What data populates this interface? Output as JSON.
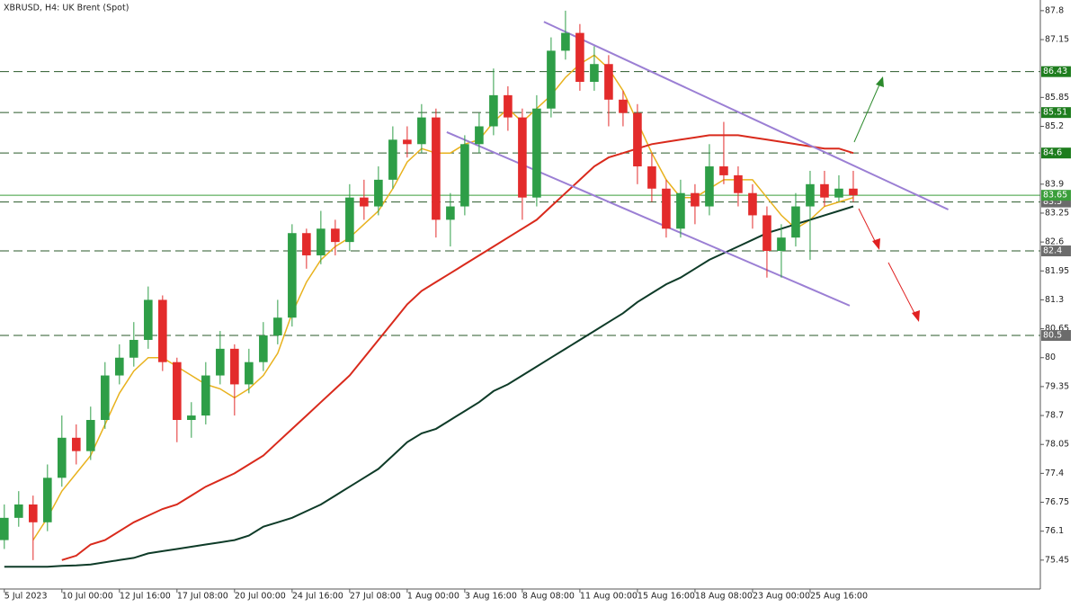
{
  "chart_data": {
    "type": "candlestick",
    "title": "XBRUSD, H4:  UK Brent (Spot)",
    "xlim": [
      -0.3,
      72
    ],
    "xticks": [
      {
        "value": 0,
        "label": "5 Jul 2023"
      },
      {
        "value": 4,
        "label": "10 Jul 00:00"
      },
      {
        "value": 8,
        "label": "12 Jul 16:00"
      },
      {
        "value": 12,
        "label": "17 Jul 08:00"
      },
      {
        "value": 16,
        "label": "20 Jul 00:00"
      },
      {
        "value": 20,
        "label": "24 Jul 16:00"
      },
      {
        "value": 24,
        "label": "27 Jul 08:00"
      },
      {
        "value": 28,
        "label": "1 Aug 00:00"
      },
      {
        "value": 32,
        "label": "3 Aug 16:00"
      },
      {
        "value": 36,
        "label": "8 Aug 08:00"
      },
      {
        "value": 40,
        "label": "11 Aug 00:00"
      },
      {
        "value": 44,
        "label": "15 Aug 16:00"
      },
      {
        "value": 48,
        "label": "18 Aug 08:00"
      },
      {
        "value": 52,
        "label": "23 Aug 00:00"
      },
      {
        "value": 56,
        "label": "25 Aug 16:00"
      }
    ],
    "ylim": [
      74.8,
      88.04
    ],
    "yticks": [
      87.8,
      87.15,
      85.85,
      85.2,
      83.9,
      83.25,
      82.6,
      81.95,
      81.3,
      80.65,
      80.0,
      79.35,
      78.7,
      78.05,
      77.4,
      76.75,
      76.1,
      75.45
    ],
    "up_color": "#2e9e47",
    "down_color": "#e32b2b",
    "candles": {
      "open": [
        75.9,
        76.4,
        76.7,
        76.3,
        77.3,
        78.2,
        77.9,
        78.6,
        79.6,
        80.0,
        80.4,
        81.3,
        79.9,
        78.6,
        78.7,
        79.6,
        80.2,
        79.4,
        79.9,
        80.5,
        80.9,
        82.8,
        82.3,
        82.9,
        82.6,
        83.6,
        83.4,
        84.0,
        84.9,
        84.8,
        85.4,
        83.1,
        83.4,
        84.8,
        85.2,
        85.9,
        85.4,
        83.6,
        85.6,
        86.9,
        87.3,
        86.2,
        86.6,
        85.8,
        85.5,
        84.3,
        83.8,
        82.9,
        83.7,
        83.4,
        84.3,
        84.1,
        83.7,
        83.2,
        82.4,
        82.7,
        83.4,
        83.9,
        83.6,
        83.8
      ],
      "high": [
        76.7,
        77.0,
        76.9,
        77.6,
        78.7,
        78.5,
        78.9,
        79.9,
        80.3,
        80.8,
        81.6,
        81.4,
        80.0,
        79.0,
        79.9,
        80.6,
        80.3,
        80.2,
        80.8,
        81.3,
        83.0,
        82.9,
        83.3,
        83.1,
        83.9,
        84.0,
        84.3,
        85.2,
        85.2,
        85.7,
        85.6,
        83.7,
        85.0,
        85.5,
        86.5,
        86.1,
        85.6,
        85.9,
        87.2,
        87.8,
        87.5,
        87.0,
        86.8,
        86.0,
        85.7,
        84.6,
        84.0,
        84.0,
        83.9,
        84.8,
        85.3,
        84.3,
        83.9,
        83.4,
        83.0,
        83.7,
        84.2,
        84.2,
        84.1,
        84.2
      ],
      "low": [
        75.7,
        76.2,
        75.45,
        76.1,
        77.1,
        77.6,
        77.7,
        78.4,
        79.4,
        79.8,
        80.2,
        79.7,
        78.1,
        78.2,
        78.5,
        79.4,
        78.7,
        79.2,
        79.7,
        80.3,
        80.7,
        82.0,
        82.1,
        82.3,
        82.4,
        83.1,
        83.2,
        83.8,
        84.5,
        84.6,
        82.7,
        82.5,
        83.2,
        84.6,
        85.0,
        85.1,
        83.1,
        83.4,
        85.4,
        86.7,
        86.0,
        86.0,
        85.2,
        85.2,
        83.9,
        83.5,
        82.7,
        82.7,
        83.0,
        83.2,
        83.9,
        83.4,
        82.9,
        81.8,
        81.8,
        82.5,
        82.2,
        83.4,
        83.5,
        83.5
      ],
      "close": [
        76.4,
        76.7,
        76.3,
        77.3,
        78.2,
        77.9,
        78.6,
        79.6,
        80.0,
        80.4,
        81.3,
        79.9,
        78.6,
        78.7,
        79.6,
        80.2,
        79.4,
        79.9,
        80.5,
        80.9,
        82.8,
        82.3,
        82.9,
        82.6,
        83.6,
        83.4,
        84.0,
        84.9,
        84.8,
        85.4,
        83.1,
        83.4,
        84.8,
        85.2,
        85.9,
        85.4,
        83.6,
        85.6,
        86.9,
        87.3,
        86.2,
        86.6,
        85.8,
        85.5,
        84.3,
        83.8,
        82.9,
        83.7,
        83.4,
        84.3,
        84.1,
        83.7,
        83.2,
        82.4,
        82.7,
        83.4,
        83.9,
        83.6,
        83.8,
        83.65
      ]
    },
    "series": [
      {
        "color": "#e8b21e",
        "values": [
          null,
          null,
          75.9,
          76.4,
          77.0,
          77.4,
          77.8,
          78.5,
          79.2,
          79.7,
          80.0,
          80.0,
          79.8,
          79.6,
          79.4,
          79.3,
          79.1,
          79.3,
          79.6,
          80.1,
          81.0,
          81.7,
          82.2,
          82.5,
          82.7,
          83.0,
          83.3,
          83.8,
          84.4,
          84.7,
          84.6,
          84.6,
          84.8,
          84.9,
          85.3,
          85.6,
          85.3,
          85.6,
          85.9,
          86.3,
          86.6,
          86.8,
          86.5,
          86.0,
          85.3,
          84.6,
          84.0,
          83.6,
          83.6,
          83.8,
          84.0,
          84.0,
          84.0,
          83.6,
          83.2,
          82.9,
          83.1,
          83.4,
          83.5,
          83.6
        ]
      },
      {
        "color": "#d92a1c",
        "values": [
          null,
          null,
          null,
          null,
          75.45,
          75.55,
          75.8,
          75.9,
          76.1,
          76.3,
          76.45,
          76.6,
          76.7,
          76.9,
          77.1,
          77.25,
          77.4,
          77.6,
          77.8,
          78.1,
          78.4,
          78.7,
          79.0,
          79.3,
          79.6,
          80.0,
          80.4,
          80.8,
          81.2,
          81.5,
          81.7,
          81.9,
          82.1,
          82.3,
          82.5,
          82.7,
          82.9,
          83.1,
          83.4,
          83.7,
          84.0,
          84.3,
          84.5,
          84.6,
          84.7,
          84.8,
          84.85,
          84.9,
          84.95,
          85.0,
          85.0,
          85.0,
          84.95,
          84.9,
          84.85,
          84.8,
          84.75,
          84.7,
          84.7,
          84.6
        ]
      },
      {
        "color": "#0e3b28",
        "values": [
          75.3,
          75.3,
          75.3,
          75.3,
          75.32,
          75.33,
          75.35,
          75.4,
          75.45,
          75.5,
          75.6,
          75.65,
          75.7,
          75.75,
          75.8,
          75.85,
          75.9,
          76.0,
          76.2,
          76.3,
          76.4,
          76.55,
          76.7,
          76.9,
          77.1,
          77.3,
          77.5,
          77.8,
          78.1,
          78.3,
          78.4,
          78.6,
          78.8,
          79.0,
          79.25,
          79.4,
          79.6,
          79.8,
          80.0,
          80.2,
          80.4,
          80.6,
          80.8,
          81.0,
          81.25,
          81.45,
          81.65,
          81.8,
          82.0,
          82.2,
          82.35,
          82.5,
          82.65,
          82.8,
          82.9,
          83.0,
          83.1,
          83.2,
          83.3,
          83.4
        ]
      }
    ],
    "trendlines": [
      {
        "color": "#9b7fd4",
        "x": [
          37.5,
          65.6
        ],
        "y": [
          87.55,
          83.33
        ]
      },
      {
        "color": "#9b7fd4",
        "x": [
          30.75,
          58.75
        ],
        "y": [
          85.07,
          81.17
        ]
      }
    ],
    "levels": [
      {
        "value": 86.43,
        "color": "#1e7d1e"
      },
      {
        "value": 85.51,
        "color": "#1e7d1e"
      },
      {
        "value": 84.6,
        "color": "#1e7d1e"
      },
      {
        "value": 83.5,
        "color": "#6b6b6b"
      },
      {
        "value": 82.4,
        "color": "#6b6b6b"
      },
      {
        "value": 80.5,
        "color": "#6b6b6b"
      }
    ],
    "current_price": {
      "value": 83.65,
      "color": "#3a9e3a"
    }
  }
}
